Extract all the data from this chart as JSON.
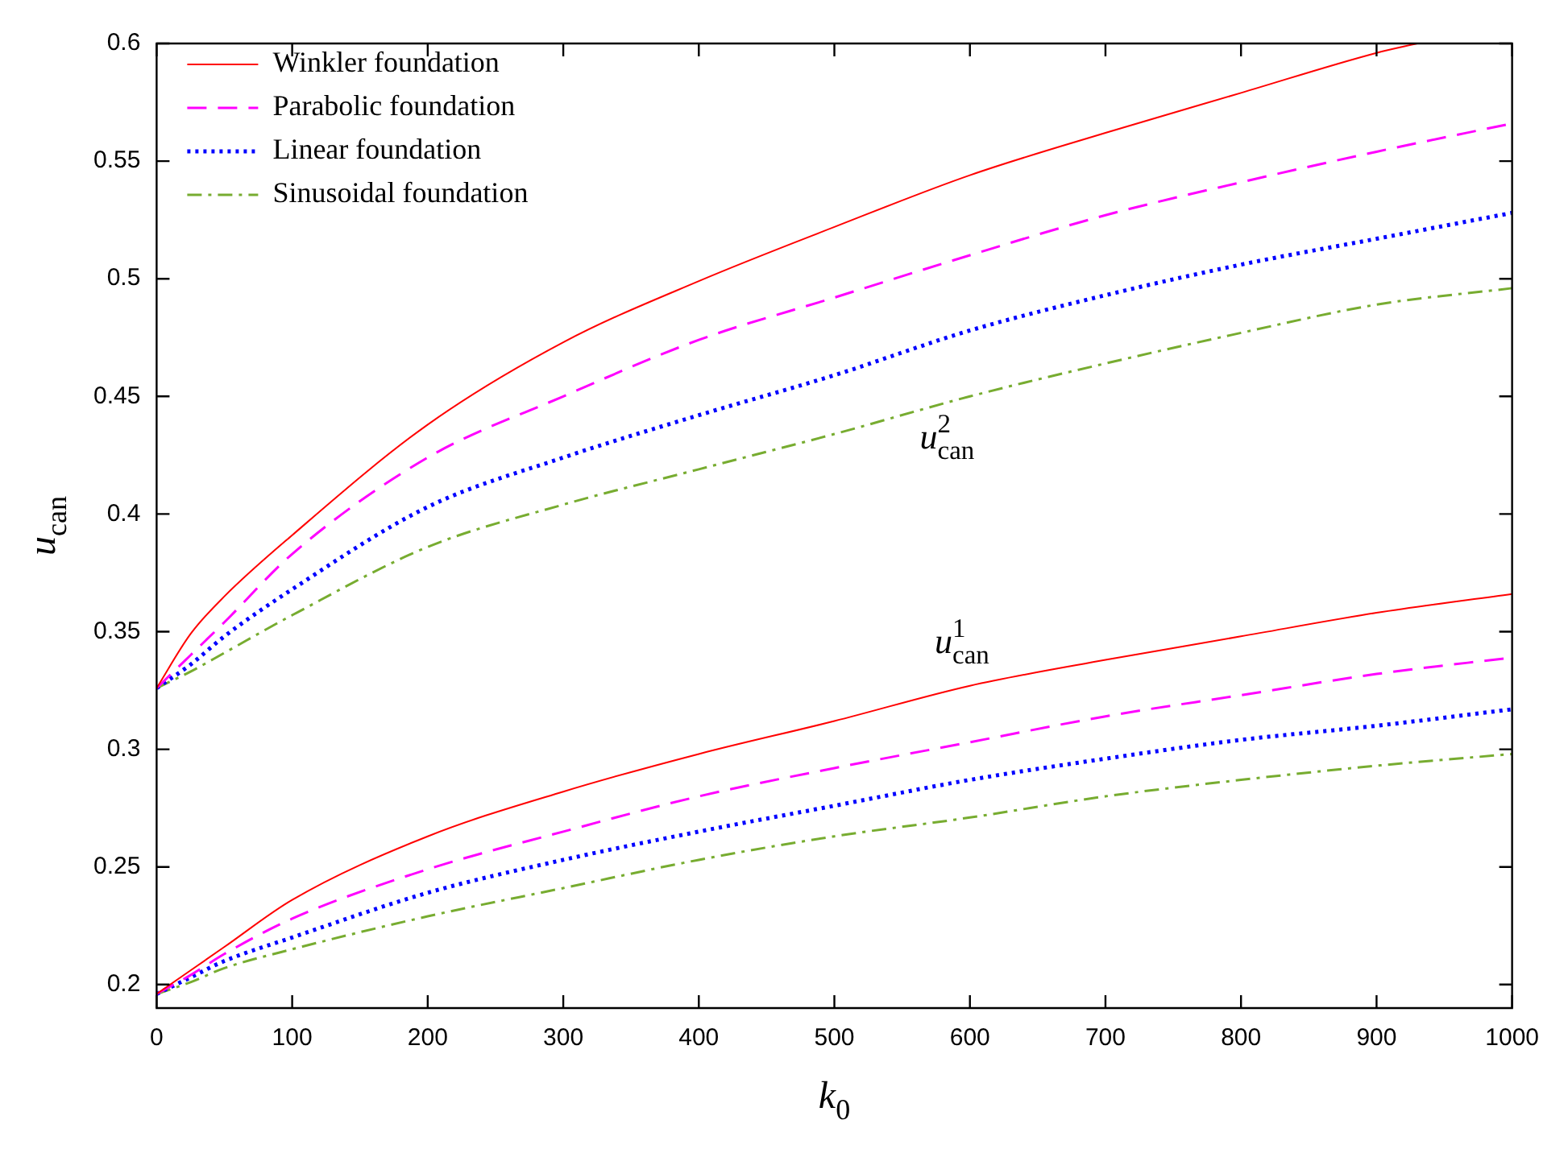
{
  "chart_data": {
    "type": "line",
    "xlabel": "k$_{0}$",
    "ylabel": "u$_{can}$",
    "x": [
      0,
      25,
      50,
      100,
      200,
      300,
      400,
      500,
      600,
      700,
      800,
      900,
      1000
    ],
    "series": [
      {
        "name": "Winkler foundation",
        "color": "#ff0000",
        "line_style": "solid",
        "x": [
          0,
          25,
          50,
          100,
          200,
          300,
          400,
          500,
          600,
          700,
          800,
          900,
          930
        ],
        "values": [
          0.326,
          0.349,
          0.365,
          0.391,
          0.438,
          0.473,
          0.499,
          0.522,
          0.544,
          0.562,
          0.579,
          0.596,
          0.6
        ]
      },
      {
        "name": "Parabolic foundation",
        "color": "#ff00ff",
        "line_style": "dashed",
        "values": [
          0.326,
          0.34,
          0.354,
          0.383,
          0.424,
          0.45,
          0.474,
          0.492,
          0.51,
          0.527,
          0.541,
          0.554,
          0.566
        ]
      },
      {
        "name": "Linear foundation",
        "color": "#0000ff",
        "line_style": "dotted",
        "values": [
          0.326,
          0.336,
          0.348,
          0.368,
          0.403,
          0.424,
          0.442,
          0.459,
          0.478,
          0.493,
          0.506,
          0.517,
          0.528
        ]
      },
      {
        "name": "Sinusoidal foundation",
        "color": "#77ac30",
        "line_style": "dashdot",
        "values": [
          0.326,
          0.333,
          0.341,
          0.357,
          0.386,
          0.404,
          0.419,
          0.434,
          0.45,
          0.464,
          0.477,
          0.489,
          0.496
        ]
      },
      {
        "color": "#ff0000",
        "line_style": "solid",
        "values": [
          0.196,
          0.206,
          0.216,
          0.236,
          0.263,
          0.282,
          0.298,
          0.312,
          0.327,
          0.338,
          0.348,
          0.358,
          0.366
        ]
      },
      {
        "color": "#ff00ff",
        "line_style": "dashed",
        "values": [
          0.196,
          0.204,
          0.213,
          0.228,
          0.249,
          0.265,
          0.28,
          0.292,
          0.303,
          0.314,
          0.323,
          0.332,
          0.339
        ]
      },
      {
        "color": "#0000ff",
        "line_style": "dotted",
        "values": [
          0.196,
          0.203,
          0.21,
          0.22,
          0.239,
          0.253,
          0.265,
          0.276,
          0.287,
          0.296,
          0.304,
          0.31,
          0.317
        ]
      },
      {
        "color": "#77ac30",
        "line_style": "dashdot",
        "values": [
          0.196,
          0.201,
          0.207,
          0.215,
          0.229,
          0.241,
          0.253,
          0.263,
          0.271,
          0.28,
          0.287,
          0.293,
          0.298
        ]
      }
    ],
    "annotations": [
      "u$^{2}$$_{can}$",
      "u$^{1}$$_{can}$"
    ],
    "xlim": [
      0,
      1000
    ],
    "xticks": [
      0,
      100,
      200,
      300,
      400,
      500,
      600,
      700,
      800,
      900,
      1000
    ],
    "ylim": [
      0.19,
      0.6
    ],
    "yticks": [
      0.2,
      0.25,
      0.3,
      0.35,
      0.4,
      0.45,
      0.5,
      0.55,
      0.6
    ],
    "legend": "top left",
    "marker": "none"
  }
}
